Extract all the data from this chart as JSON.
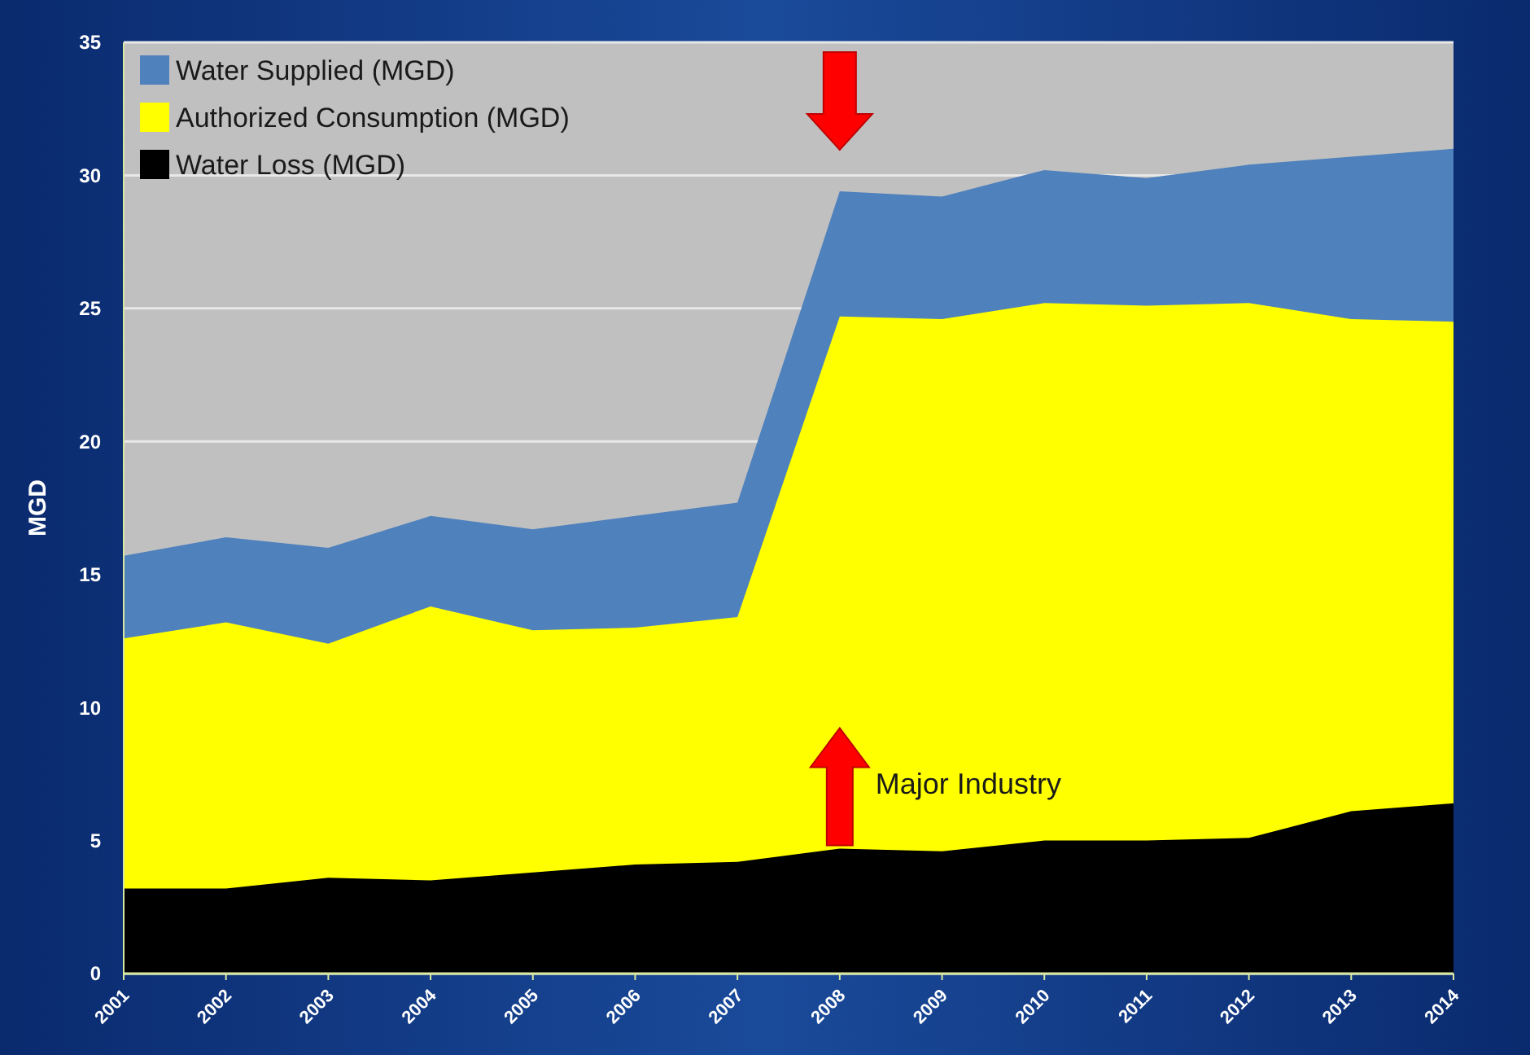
{
  "chart_data": {
    "type": "area",
    "ylabel": "MGD",
    "categories": [
      "2001",
      "2002",
      "2003",
      "2004",
      "2005",
      "2006",
      "2007",
      "2008",
      "2009",
      "2010",
      "2011",
      "2012",
      "2013",
      "2014"
    ],
    "series": [
      {
        "name": "Water Supplied (MGD)",
        "color": "#4f81bd",
        "values": [
          15.7,
          16.4,
          16.0,
          17.2,
          16.7,
          17.2,
          17.7,
          29.4,
          29.2,
          30.2,
          29.9,
          30.4,
          30.7,
          31.0
        ]
      },
      {
        "name": "Authorized Consumption (MGD)",
        "color": "#ffff00",
        "values": [
          12.6,
          13.2,
          12.4,
          13.8,
          12.9,
          13.0,
          13.4,
          24.7,
          24.6,
          25.2,
          25.1,
          25.2,
          24.6,
          24.5
        ]
      },
      {
        "name": "Water Loss (MGD)",
        "color": "#000000",
        "values": [
          3.2,
          3.2,
          3.6,
          3.5,
          3.8,
          4.1,
          4.2,
          4.7,
          4.6,
          5.0,
          5.0,
          5.1,
          6.1,
          6.4
        ]
      }
    ],
    "ylim": [
      0,
      35
    ],
    "yticks": [
      0,
      5,
      10,
      15,
      20,
      25,
      30,
      35
    ],
    "grid": "y",
    "legend": "top left",
    "annotations": [
      "Major Industry"
    ]
  }
}
